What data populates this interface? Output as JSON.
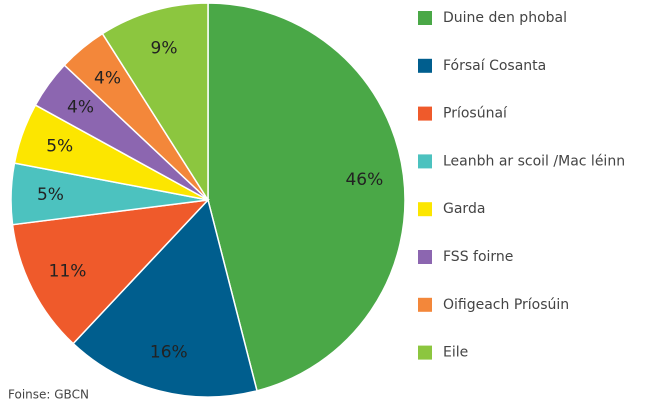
{
  "chart_data": {
    "type": "pie",
    "categories": [
      "Duine den phobal",
      "Fórsaí Cosanta",
      "Príosúnaí",
      "Leanbh ar scoil /Mac léinn",
      "Garda",
      "FSS foirne",
      "Oifigeach Príosúin",
      "Eile"
    ],
    "values": [
      46,
      16,
      11,
      5,
      5,
      4,
      4,
      9
    ],
    "value_labels": [
      "46%",
      "16%",
      "11%",
      "5%",
      "5%",
      "4%",
      "4%",
      "9%"
    ],
    "colors": [
      "#4aa847",
      "#005e8e",
      "#ef5a2b",
      "#4cc2bf",
      "#fce600",
      "#8c66b0",
      "#f3873a",
      "#8cc63f"
    ],
    "source": "Foinse: GBCN",
    "legend": "right"
  }
}
